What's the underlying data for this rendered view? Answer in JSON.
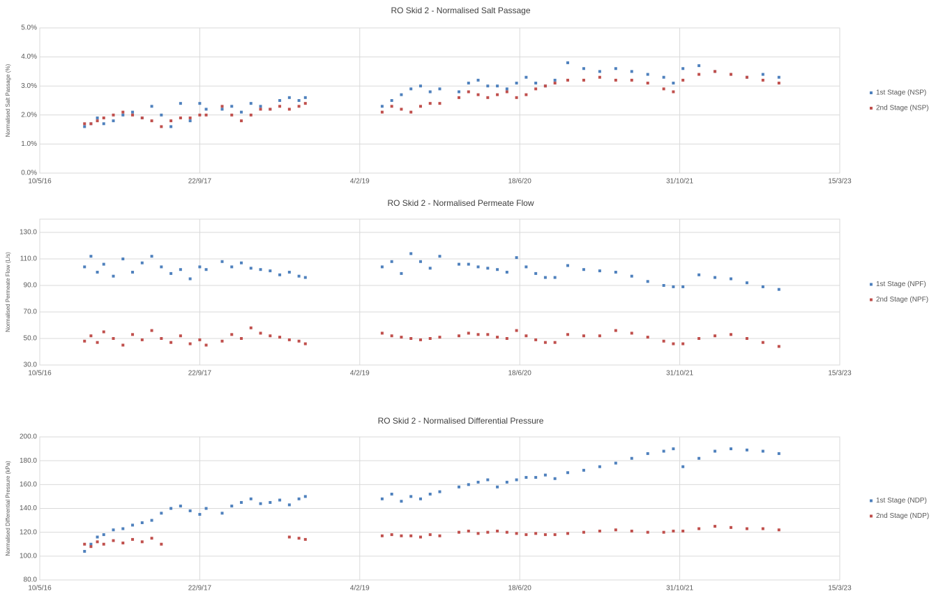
{
  "chart_data": [
    {
      "type": "scatter",
      "title": "RO Skid 2 - Normalised Salt Passage",
      "y_label": "Normalised Salt Passage (%)",
      "xlim": [
        42500,
        45000
      ],
      "xticks": [
        {
          "value": 42500,
          "label": "10/5/16"
        },
        {
          "value": 43000,
          "label": "22/9/17"
        },
        {
          "value": 43500,
          "label": "4/2/19"
        },
        {
          "value": 44000,
          "label": "18/6/20"
        },
        {
          "value": 44500,
          "label": "31/10/21"
        },
        {
          "value": 45000,
          "label": "15/3/23"
        }
      ],
      "ylim": [
        0,
        5
      ],
      "yticks": [
        {
          "value": 0,
          "label": "0.0%"
        },
        {
          "value": 1,
          "label": "1.0%"
        },
        {
          "value": 2,
          "label": "2.0%"
        },
        {
          "value": 3,
          "label": "3.0%"
        },
        {
          "value": 4,
          "label": "4.0%"
        },
        {
          "value": 5,
          "label": "5.0%"
        }
      ],
      "grid": true,
      "legend": "right",
      "series": [
        {
          "name": "1st Stage (NSP)",
          "color": "#4f81bd",
          "x": [
            42640,
            42660,
            42680,
            42700,
            42730,
            42760,
            42790,
            42820,
            42850,
            42880,
            42910,
            42940,
            42970,
            43000,
            43020,
            43070,
            43100,
            43130,
            43160,
            43190,
            43220,
            43250,
            43280,
            43310,
            43330,
            43570,
            43600,
            43630,
            43660,
            43690,
            43720,
            43750,
            43810,
            43840,
            43870,
            43900,
            43930,
            43960,
            43990,
            44020,
            44050,
            44080,
            44110,
            44150,
            44200,
            44250,
            44300,
            44350,
            44400,
            44450,
            44480,
            44510,
            44560,
            44610,
            44660,
            44710,
            44760,
            44810
          ],
          "values": [
            1.6,
            1.7,
            1.9,
            1.7,
            1.8,
            2.0,
            2.1,
            1.9,
            2.3,
            2.0,
            1.6,
            2.4,
            1.8,
            2.4,
            2.2,
            2.2,
            2.3,
            2.1,
            2.4,
            2.3,
            2.2,
            2.5,
            2.6,
            2.5,
            2.6,
            2.3,
            2.5,
            2.7,
            2.9,
            3.0,
            2.8,
            2.9,
            2.8,
            3.1,
            3.2,
            3.0,
            3.0,
            2.9,
            3.1,
            3.3,
            3.1,
            3.0,
            3.2,
            3.8,
            3.6,
            3.5,
            3.6,
            3.5,
            3.4,
            3.3,
            3.1,
            3.6,
            3.7,
            3.5,
            3.4,
            3.3,
            3.4,
            3.3
          ]
        },
        {
          "name": "2nd Stage (NSP)",
          "color": "#c0504d",
          "x": [
            42640,
            42660,
            42680,
            42700,
            42730,
            42760,
            42790,
            42820,
            42850,
            42880,
            42910,
            42940,
            42970,
            43000,
            43020,
            43070,
            43100,
            43130,
            43160,
            43190,
            43220,
            43250,
            43280,
            43310,
            43330,
            43570,
            43600,
            43630,
            43660,
            43690,
            43720,
            43750,
            43810,
            43840,
            43870,
            43900,
            43930,
            43960,
            43990,
            44020,
            44050,
            44080,
            44110,
            44150,
            44200,
            44250,
            44300,
            44350,
            44400,
            44450,
            44480,
            44510,
            44560,
            44610,
            44660,
            44710,
            44760,
            44810
          ],
          "values": [
            1.7,
            1.7,
            1.8,
            1.9,
            2.0,
            2.1,
            2.0,
            1.9,
            1.8,
            1.6,
            1.8,
            1.9,
            1.9,
            2.0,
            2.0,
            2.3,
            2.0,
            1.8,
            2.0,
            2.2,
            2.2,
            2.3,
            2.2,
            2.3,
            2.4,
            2.1,
            2.3,
            2.2,
            2.1,
            2.3,
            2.4,
            2.4,
            2.6,
            2.8,
            2.7,
            2.6,
            2.7,
            2.8,
            2.6,
            2.7,
            2.9,
            3.0,
            3.1,
            3.2,
            3.2,
            3.3,
            3.2,
            3.2,
            3.1,
            2.9,
            2.8,
            3.2,
            3.4,
            3.5,
            3.4,
            3.3,
            3.2,
            3.1
          ]
        }
      ]
    },
    {
      "type": "scatter",
      "title": "RO Skid 2 - Normalised Permeate Flow",
      "y_label": "Normalised Permeate Flow (L/s)",
      "xlim": [
        42500,
        45000
      ],
      "xticks": [
        {
          "value": 42500,
          "label": "10/5/16"
        },
        {
          "value": 43000,
          "label": "22/9/17"
        },
        {
          "value": 43500,
          "label": "4/2/19"
        },
        {
          "value": 44000,
          "label": "18/6/20"
        },
        {
          "value": 44500,
          "label": "31/10/21"
        },
        {
          "value": 45000,
          "label": "15/3/23"
        }
      ],
      "ylim": [
        30,
        140
      ],
      "yticks": [
        {
          "value": 30,
          "label": "30.0"
        },
        {
          "value": 50,
          "label": "50.0"
        },
        {
          "value": 70,
          "label": "70.0"
        },
        {
          "value": 90,
          "label": "90.0"
        },
        {
          "value": 110,
          "label": "110.0"
        },
        {
          "value": 130,
          "label": "130.0"
        }
      ],
      "grid": true,
      "legend": "right",
      "series": [
        {
          "name": "1st Stage (NPF)",
          "color": "#4f81bd",
          "x": [
            42640,
            42660,
            42680,
            42700,
            42730,
            42760,
            42790,
            42820,
            42850,
            42880,
            42910,
            42940,
            42970,
            43000,
            43020,
            43070,
            43100,
            43130,
            43160,
            43190,
            43220,
            43250,
            43280,
            43310,
            43330,
            43570,
            43600,
            43630,
            43660,
            43690,
            43720,
            43750,
            43810,
            43840,
            43870,
            43900,
            43930,
            43960,
            43990,
            44020,
            44050,
            44080,
            44110,
            44150,
            44200,
            44250,
            44300,
            44350,
            44400,
            44450,
            44480,
            44510,
            44560,
            44610,
            44660,
            44710,
            44760,
            44810
          ],
          "values": [
            104,
            112,
            100,
            106,
            97,
            110,
            100,
            107,
            112,
            104,
            99,
            102,
            95,
            104,
            102,
            108,
            104,
            107,
            103,
            102,
            101,
            98,
            100,
            97,
            96,
            104,
            108,
            99,
            114,
            108,
            103,
            112,
            106,
            106,
            104,
            103,
            102,
            100,
            111,
            104,
            99,
            96,
            96,
            105,
            102,
            101,
            100,
            97,
            93,
            90,
            89,
            89,
            98,
            96,
            95,
            92,
            89,
            87
          ]
        },
        {
          "name": "2nd Stage (NPF)",
          "color": "#c0504d",
          "x": [
            42640,
            42660,
            42680,
            42700,
            42730,
            42760,
            42790,
            42820,
            42850,
            42880,
            42910,
            42940,
            42970,
            43000,
            43020,
            43070,
            43100,
            43130,
            43160,
            43190,
            43220,
            43250,
            43280,
            43310,
            43330,
            43570,
            43600,
            43630,
            43660,
            43690,
            43720,
            43750,
            43810,
            43840,
            43870,
            43900,
            43930,
            43960,
            43990,
            44020,
            44050,
            44080,
            44110,
            44150,
            44200,
            44250,
            44300,
            44350,
            44400,
            44450,
            44480,
            44510,
            44560,
            44610,
            44660,
            44710,
            44760,
            44810
          ],
          "values": [
            48,
            52,
            47,
            55,
            50,
            45,
            53,
            49,
            56,
            50,
            47,
            52,
            46,
            49,
            45,
            48,
            53,
            50,
            58,
            54,
            52,
            51,
            49,
            48,
            46,
            54,
            52,
            51,
            50,
            49,
            50,
            51,
            52,
            54,
            53,
            53,
            51,
            50,
            56,
            52,
            49,
            47,
            47,
            53,
            52,
            52,
            56,
            54,
            51,
            48,
            46,
            46,
            50,
            52,
            53,
            50,
            47,
            44
          ]
        }
      ]
    },
    {
      "type": "scatter",
      "title": "RO Skid 2 - Normalised Differential Pressure",
      "y_label": "Normalised Differential Pressure (kPa)",
      "xlim": [
        42500,
        45000
      ],
      "xticks": [
        {
          "value": 42500,
          "label": "10/5/16"
        },
        {
          "value": 43000,
          "label": "22/9/17"
        },
        {
          "value": 43500,
          "label": "4/2/19"
        },
        {
          "value": 44000,
          "label": "18/6/20"
        },
        {
          "value": 44500,
          "label": "31/10/21"
        },
        {
          "value": 45000,
          "label": "15/3/23"
        }
      ],
      "ylim": [
        80,
        200
      ],
      "yticks": [
        {
          "value": 80,
          "label": "80.0"
        },
        {
          "value": 100,
          "label": "100.0"
        },
        {
          "value": 120,
          "label": "120.0"
        },
        {
          "value": 140,
          "label": "140.0"
        },
        {
          "value": 160,
          "label": "160.0"
        },
        {
          "value": 180,
          "label": "180.0"
        },
        {
          "value": 200,
          "label": "200.0"
        }
      ],
      "grid": true,
      "legend": "right",
      "series": [
        {
          "name": "1st Stage (NDP)",
          "color": "#4f81bd",
          "x": [
            42640,
            42660,
            42680,
            42700,
            42730,
            42760,
            42790,
            42820,
            42850,
            42880,
            42910,
            42940,
            42970,
            43000,
            43020,
            43070,
            43100,
            43130,
            43160,
            43190,
            43220,
            43250,
            43280,
            43310,
            43330,
            43570,
            43600,
            43630,
            43660,
            43690,
            43720,
            43750,
            43810,
            43840,
            43870,
            43900,
            43930,
            43960,
            43990,
            44020,
            44050,
            44080,
            44110,
            44150,
            44200,
            44250,
            44300,
            44350,
            44400,
            44450,
            44480,
            44510,
            44560,
            44610,
            44660,
            44710,
            44760,
            44810
          ],
          "values": [
            104,
            110,
            116,
            118,
            122,
            123,
            126,
            128,
            130,
            136,
            140,
            142,
            138,
            135,
            140,
            136,
            142,
            145,
            148,
            144,
            145,
            147,
            143,
            148,
            150,
            148,
            152,
            146,
            150,
            148,
            152,
            154,
            158,
            160,
            162,
            164,
            158,
            162,
            164,
            166,
            166,
            168,
            165,
            170,
            172,
            175,
            178,
            182,
            186,
            188,
            190,
            175,
            182,
            188,
            190,
            189,
            188,
            186
          ]
        },
        {
          "name": "2nd Stage (NDP)",
          "color": "#c0504d",
          "x": [
            42640,
            42660,
            42680,
            42700,
            42730,
            42760,
            42790,
            42820,
            42850,
            42880,
            43280,
            43310,
            43330,
            43570,
            43600,
            43630,
            43660,
            43690,
            43720,
            43750,
            43810,
            43840,
            43870,
            43900,
            43930,
            43960,
            43990,
            44020,
            44050,
            44080,
            44110,
            44150,
            44200,
            44250,
            44300,
            44350,
            44400,
            44450,
            44480,
            44510,
            44560,
            44610,
            44660,
            44710,
            44760,
            44810
          ],
          "values": [
            110,
            108,
            112,
            110,
            113,
            111,
            114,
            112,
            115,
            110,
            116,
            115,
            114,
            117,
            118,
            117,
            117,
            116,
            118,
            117,
            120,
            121,
            119,
            120,
            121,
            120,
            119,
            118,
            119,
            118,
            118,
            119,
            120,
            121,
            122,
            121,
            120,
            120,
            121,
            121,
            123,
            125,
            124,
            123,
            123,
            122
          ]
        }
      ]
    }
  ]
}
